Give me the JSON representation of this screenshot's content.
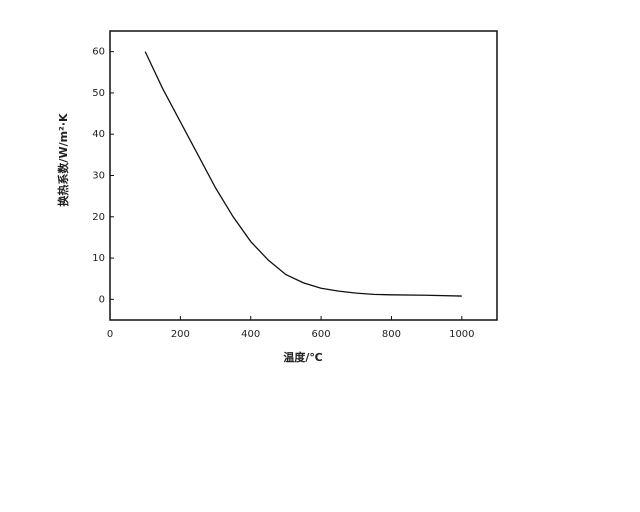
{
  "chart_data": {
    "type": "line",
    "x_label": "温度/℃",
    "y_label": "换热系数/W/m²·K",
    "x": [
      100,
      150,
      200,
      250,
      300,
      350,
      400,
      450,
      500,
      550,
      600,
      650,
      700,
      750,
      800,
      900,
      1000
    ],
    "series": [
      {
        "color": "#111111",
        "values": [
          60,
          51,
          43,
          35,
          27,
          20,
          14,
          9.5,
          6,
          4,
          2.7,
          2,
          1.5,
          1.2,
          1.1,
          1,
          0.8
        ]
      }
    ],
    "xlim": [
      0,
      1100
    ],
    "ylim": [
      -5,
      65
    ],
    "xticks": [
      0,
      200,
      400,
      600,
      800,
      1000
    ],
    "yticks": [
      0,
      10,
      20,
      30,
      40,
      50,
      60
    ]
  }
}
